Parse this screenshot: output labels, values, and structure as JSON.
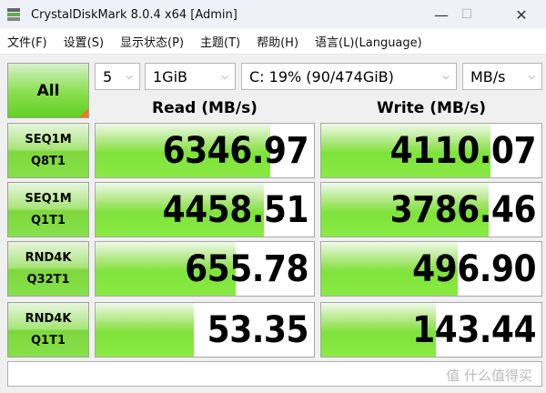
{
  "window": {
    "title": "CrystalDiskMark 8.0.4 x64 [Admin]",
    "minimize": "—",
    "maximize": "☐",
    "close": "✕"
  },
  "menu": [
    "文件(F)",
    "设置(S)",
    "显示状态(P)",
    "主题(T)",
    "帮助(H)",
    "语言(L)(Language)"
  ],
  "controls": {
    "all_label": "All",
    "count": "5",
    "size": "1GiB",
    "drive": "C: 19% (90/474GiB)",
    "unit": "MB/s"
  },
  "headers": {
    "read": "Read (MB/s)",
    "write": "Write (MB/s)"
  },
  "colors": {
    "bar": "#7ee33a",
    "accent": "#f07a20"
  },
  "rows": [
    {
      "line1": "SEQ1M",
      "line2": "Q8T1",
      "read": "6346.97",
      "write": "4110.07",
      "read_fill": 0.8,
      "write_fill": 0.77
    },
    {
      "line1": "SEQ1M",
      "line2": "Q1T1",
      "read": "4458.51",
      "write": "3786.46",
      "read_fill": 0.77,
      "write_fill": 0.76
    },
    {
      "line1": "RND4K",
      "line2": "Q32T1",
      "read": "655.78",
      "write": "496.90",
      "read_fill": 0.64,
      "write_fill": 0.62
    },
    {
      "line1": "RND4K",
      "line2": "Q1T1",
      "read": "53.35",
      "write": "143.44",
      "read_fill": 0.45,
      "write_fill": 0.52
    }
  ],
  "status": {
    "text": "",
    "watermark": "值 什么值得买"
  }
}
